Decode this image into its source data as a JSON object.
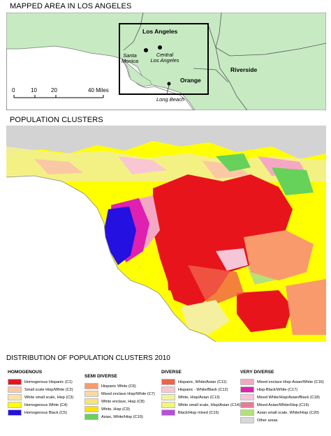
{
  "top_map": {
    "title": "MAPPED AREA IN LOS ANGELES",
    "box_label": "Los Angeles",
    "places": [
      {
        "key": "santa_monica",
        "line1": "Santa",
        "line2": "Monica"
      },
      {
        "key": "central_la",
        "line1": "Central",
        "line2": "Los Angeles"
      },
      {
        "key": "long_beach",
        "line1": "Long Beach",
        "line2": ""
      }
    ],
    "counties": {
      "orange": "Orange",
      "riverside": "Riverside"
    },
    "scale": {
      "ticks": [
        "0",
        "10",
        "20",
        "40 Miles"
      ]
    },
    "colors": {
      "land": "#c7eac3",
      "ocean": "#ffffff",
      "border": "#555555"
    }
  },
  "cluster_map": {
    "title": "POPULATION CLUSTERS",
    "ocean_color": "#ffffff",
    "background_color": "#d3d3d3"
  },
  "legend": {
    "title": "DISTRIBUTION OF POPULATION CLUSTERS 2010",
    "groups": [
      {
        "title": "HOMOGENOUS",
        "items": [
          {
            "label": "Homogenous Hispanic (C1)",
            "color": "#e8141c"
          },
          {
            "label": "Small scale Hisp/White (C2)",
            "color": "#fbc8a6"
          },
          {
            "label": "White small scale, Hisp (C3)",
            "color": "#fde3a7"
          },
          {
            "label": "Homogenous White (C4)",
            "color": "#ffff00"
          },
          {
            "label": "Homogenous Black (C5)",
            "color": "#2410e0"
          }
        ]
      },
      {
        "title": "SEMI DIVERSE",
        "items": [
          {
            "label": "Hispanic White (C6)",
            "color": "#f99a6c"
          },
          {
            "label": "Mixed enclave Hisp/White (C7)",
            "color": "#fbd6a3"
          },
          {
            "label": "White enclave, Hisp (C8)",
            "color": "#f7e47e"
          },
          {
            "label": "White, Hisp (C9)",
            "color": "#ffe200"
          },
          {
            "label": "Asian, White/Hisp (C10)",
            "color": "#66d25a"
          }
        ]
      },
      {
        "title": "DIVERSE",
        "items": [
          {
            "label": "Hispanic, White/Asian (C11)",
            "color": "#f0624a"
          },
          {
            "label": "Hispanic - White/Black (C12)",
            "color": "#f9c7d2"
          },
          {
            "label": "White, Hisp/Asian (C13)",
            "color": "#f4f0a0"
          },
          {
            "label": "White small scale, Hisp/Asian (C14)",
            "color": "#f2f57c"
          },
          {
            "label": "Black/Hisp mixed (C15)",
            "color": "#b650d8"
          }
        ]
      },
      {
        "title": "VERY DIVERSE",
        "items": [
          {
            "label": "Mixed enclave Hisp-Asian/White (C16)",
            "color": "#f5a8c4"
          },
          {
            "label": "Hisp-Black/White (C17)",
            "color": "#e020b0"
          },
          {
            "label": "Mixed White/Hisp/Asian/Black (C18)",
            "color": "#f6c6d8"
          },
          {
            "label": "Mixed Asian/White/Hisp (C19)",
            "color": "#e87a98"
          },
          {
            "label": "Asian small scale, White/Hisp (C20)",
            "color": "#b5e07a"
          },
          {
            "label": "Other areas",
            "color": "#d8d8d8"
          }
        ]
      }
    ]
  }
}
